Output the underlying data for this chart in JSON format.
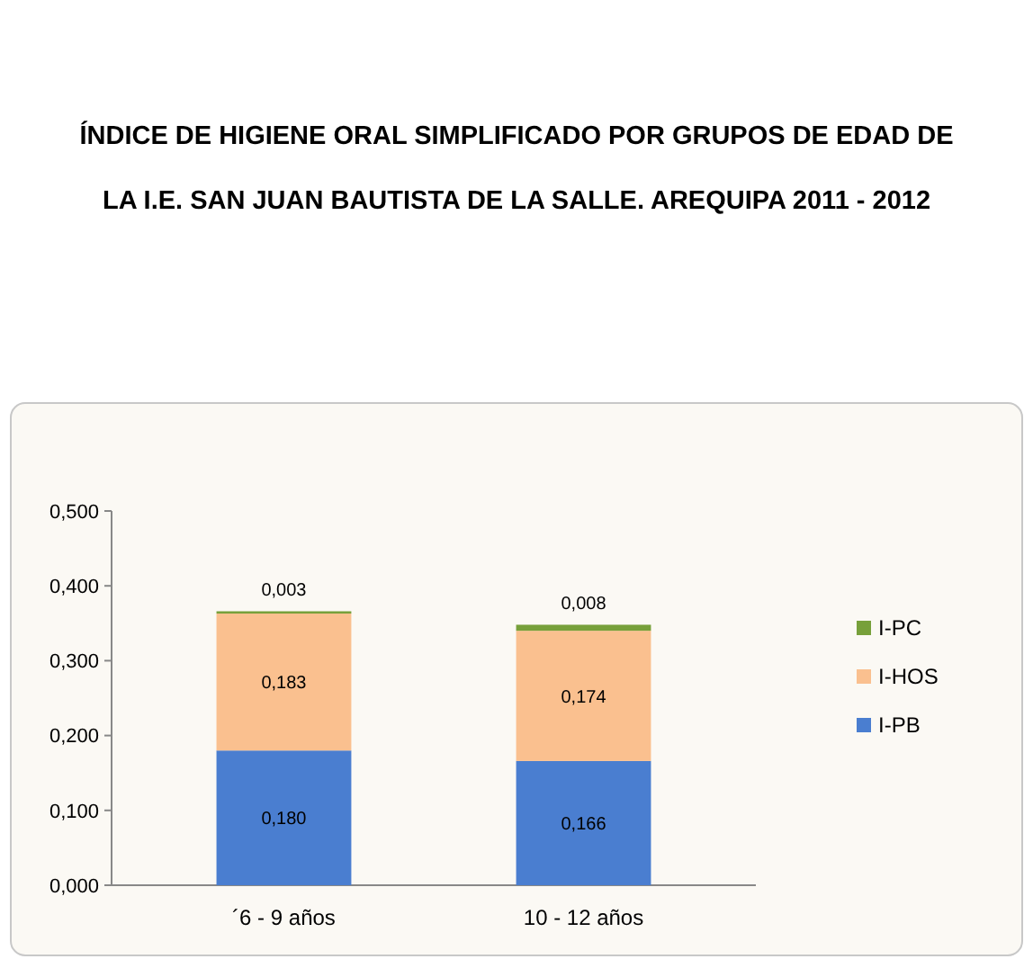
{
  "chart_data": {
    "type": "bar",
    "stacked": true,
    "title": "ÍNDICE DE HIGIENE ORAL SIMPLIFICADO POR GRUPOS DE EDAD DE LA I.E. SAN JUAN BAUTISTA DE LA SALLE. AREQUIPA 2011 - 2012",
    "categories": [
      "´6 - 9 años",
      "10 - 12 años"
    ],
    "series": [
      {
        "name": "I-PB",
        "color": "#4a7ed0",
        "values": [
          0.18,
          0.166
        ],
        "value_labels": [
          "0,180",
          "0,166"
        ]
      },
      {
        "name": "I-HOS",
        "color": "#fac08f",
        "values": [
          0.183,
          0.174
        ],
        "value_labels": [
          "0,183",
          "0,174"
        ]
      },
      {
        "name": "I-PC",
        "color": "#77a03a",
        "values": [
          0.003,
          0.008
        ],
        "value_labels": [
          "0,003",
          "0,008"
        ]
      }
    ],
    "ylim": [
      0,
      0.5
    ],
    "yticks": [
      {
        "value": 0,
        "label": "0,000"
      },
      {
        "value": 0.1,
        "label": "0,100"
      },
      {
        "value": 0.2,
        "label": "0,200"
      },
      {
        "value": 0.3,
        "label": "0,300"
      },
      {
        "value": 0.4,
        "label": "0,400"
      },
      {
        "value": 0.5,
        "label": "0,500"
      }
    ],
    "legend": "right",
    "grid": false
  }
}
